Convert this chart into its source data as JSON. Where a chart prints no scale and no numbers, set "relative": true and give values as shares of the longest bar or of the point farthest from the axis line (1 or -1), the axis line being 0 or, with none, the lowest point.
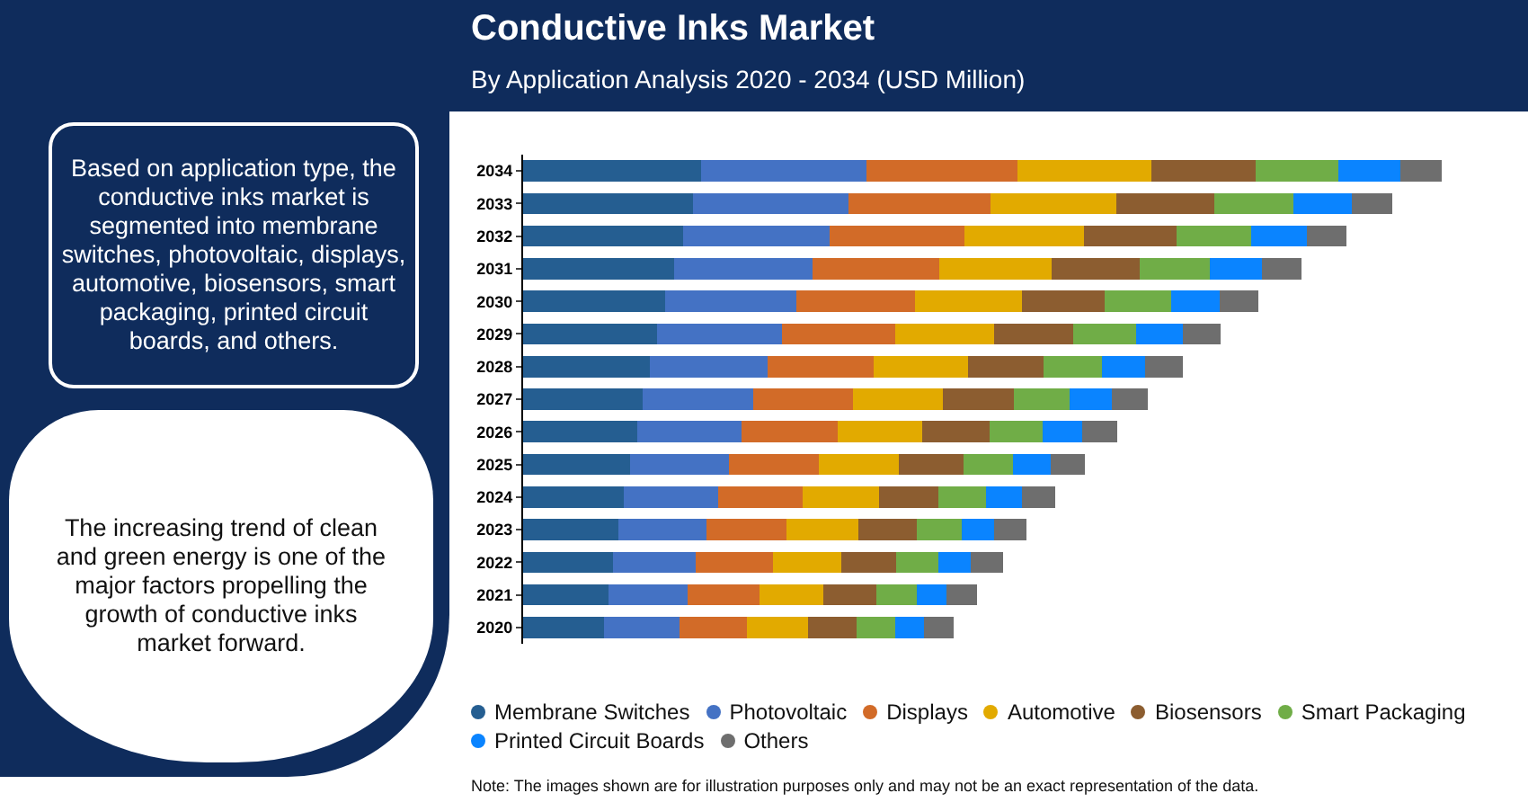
{
  "chart_data": {
    "type": "bar",
    "orientation": "horizontal",
    "stacked": true,
    "relative": true,
    "title": "Conductive Inks Market",
    "subtitle": "By Application Analysis 2020 - 2034 (USD Million)",
    "categories": [
      "2034",
      "2033",
      "2032",
      "2031",
      "2030",
      "2029",
      "2028",
      "2027",
      "2026",
      "2025",
      "2024",
      "2023",
      "2022",
      "2021",
      "2020"
    ],
    "series": [
      {
        "name": "Membrane Switches",
        "color": "#255e91",
        "values": [
          0.194,
          0.185,
          0.174,
          0.164,
          0.155,
          0.146,
          0.138,
          0.13,
          0.124,
          0.116,
          0.11,
          0.104,
          0.098,
          0.093,
          0.088
        ]
      },
      {
        "name": "Photovoltaic",
        "color": "#4472c4",
        "values": [
          0.18,
          0.169,
          0.16,
          0.151,
          0.142,
          0.136,
          0.128,
          0.12,
          0.114,
          0.108,
          0.102,
          0.096,
          0.09,
          0.086,
          0.082
        ]
      },
      {
        "name": "Displays",
        "color": "#d26b28",
        "values": [
          0.164,
          0.155,
          0.146,
          0.138,
          0.13,
          0.123,
          0.116,
          0.109,
          0.104,
          0.098,
          0.092,
          0.087,
          0.084,
          0.078,
          0.074
        ]
      },
      {
        "name": "Automotive",
        "color": "#e2aa00",
        "values": [
          0.146,
          0.137,
          0.13,
          0.122,
          0.116,
          0.108,
          0.102,
          0.098,
          0.092,
          0.087,
          0.083,
          0.078,
          0.074,
          0.07,
          0.066
        ]
      },
      {
        "name": "Biosensors",
        "color": "#8c5d30",
        "values": [
          0.113,
          0.106,
          0.101,
          0.096,
          0.09,
          0.086,
          0.082,
          0.077,
          0.074,
          0.07,
          0.065,
          0.063,
          0.06,
          0.057,
          0.053
        ]
      },
      {
        "name": "Smart Packaging",
        "color": "#70ad47",
        "values": [
          0.09,
          0.086,
          0.081,
          0.076,
          0.072,
          0.068,
          0.064,
          0.061,
          0.057,
          0.054,
          0.052,
          0.049,
          0.046,
          0.044,
          0.042
        ]
      },
      {
        "name": "Printed Circuit Boards",
        "color": "#0a84ff",
        "values": [
          0.068,
          0.064,
          0.061,
          0.057,
          0.053,
          0.051,
          0.047,
          0.046,
          0.043,
          0.041,
          0.039,
          0.036,
          0.035,
          0.033,
          0.031
        ]
      },
      {
        "name": "Others",
        "color": "#6e6e6e",
        "values": [
          0.045,
          0.044,
          0.043,
          0.043,
          0.042,
          0.041,
          0.041,
          0.039,
          0.039,
          0.037,
          0.036,
          0.035,
          0.035,
          0.033,
          0.033
        ]
      }
    ],
    "legend": "bottom",
    "grid": false,
    "annotations": [
      "Based on application type, the conductive inks market is segmented into membrane switches, photovoltaic, displays, automotive, biosensors, smart packaging, printed circuit boards, and others.",
      "The increasing trend of clean and green energy is one of the major factors propelling the growth of conductive inks market forward.",
      "Note: The images shown are for illustration purposes only and may not be an exact representation of the data."
    ]
  }
}
